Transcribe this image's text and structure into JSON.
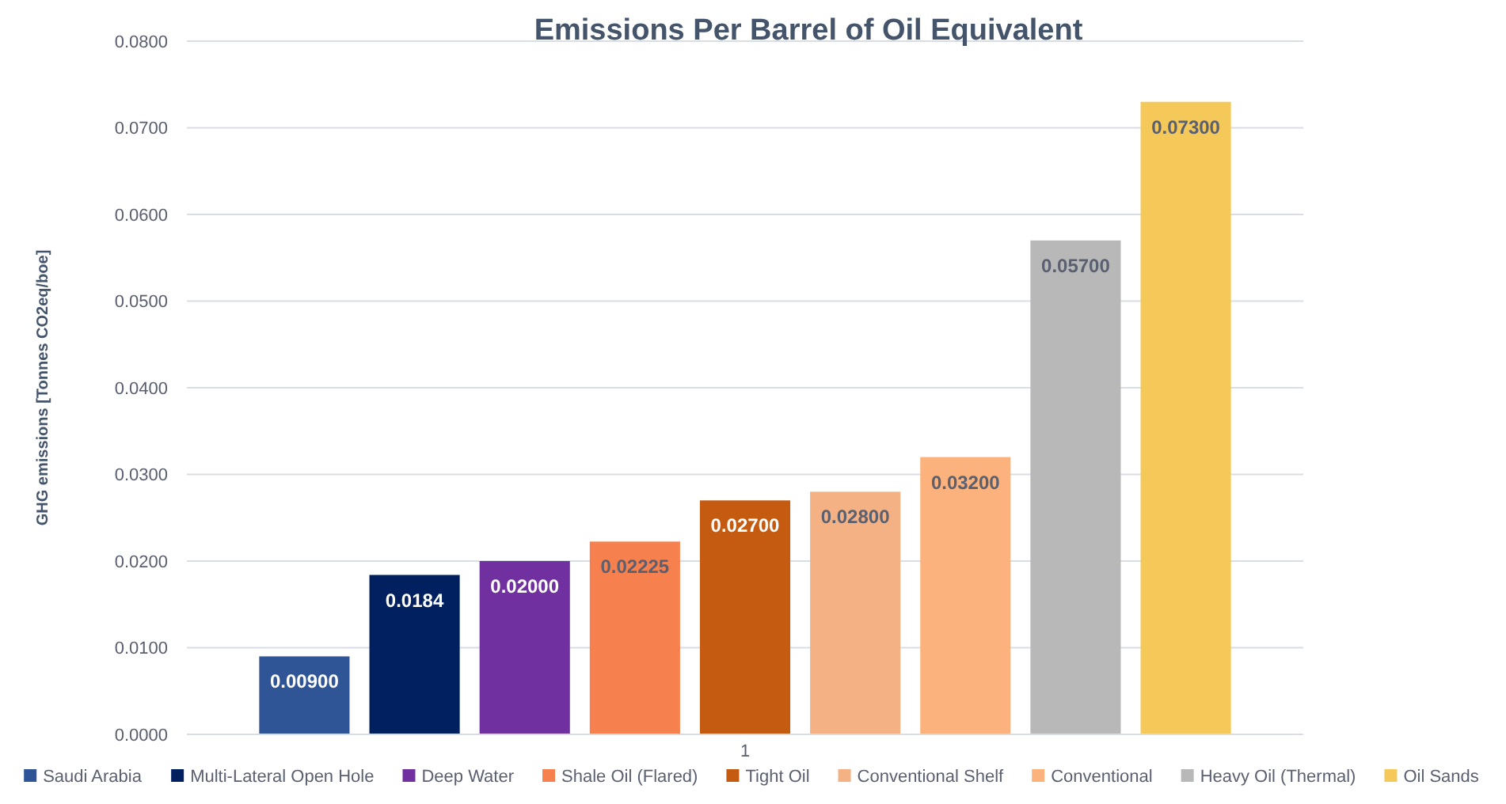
{
  "chart_data": {
    "type": "bar",
    "title": "Emissions Per Barrel of Oil Equivalent",
    "ylabel": "GHG emissions [Tonnes CO2eq/boe]",
    "categories": [
      "1"
    ],
    "series": [
      {
        "name": "Saudi Arabia",
        "color": "#2f5597",
        "values": [
          0.009
        ],
        "value_labels": [
          "0.00900"
        ]
      },
      {
        "name": "Multi-Lateral Open Hole",
        "color": "#002060",
        "values": [
          0.0184
        ],
        "value_labels": [
          "0.0184"
        ]
      },
      {
        "name": "Deep Water",
        "color": "#7030a0",
        "values": [
          0.02
        ],
        "value_labels": [
          "0.02000"
        ]
      },
      {
        "name": "Shale Oil (Flared)",
        "color": "#f6804e",
        "values": [
          0.02225
        ],
        "value_labels": [
          "0.02225"
        ]
      },
      {
        "name": "Tight Oil",
        "color": "#c55a11",
        "values": [
          0.027
        ],
        "value_labels": [
          "0.02700"
        ]
      },
      {
        "name": "Conventional Shelf",
        "color": "#f4b183",
        "values": [
          0.028
        ],
        "value_labels": [
          "0.02800"
        ]
      },
      {
        "name": "Conventional",
        "color": "#fbb27c",
        "values": [
          0.032
        ],
        "value_labels": [
          "0.03200"
        ]
      },
      {
        "name": "Heavy Oil (Thermal)",
        "color": "#b8b8b8",
        "values": [
          0.057
        ],
        "value_labels": [
          "0.05700"
        ]
      },
      {
        "name": "Oil Sands",
        "color": "#f5c85a",
        "values": [
          0.073
        ],
        "value_labels": [
          "0.07300"
        ]
      }
    ],
    "ylim": [
      0,
      0.08
    ],
    "yticks": [
      {
        "value": 0,
        "label": "0.0000"
      },
      {
        "value": 0.01,
        "label": "0.0100"
      },
      {
        "value": 0.02,
        "label": "0.0200"
      },
      {
        "value": 0.03,
        "label": "0.0300"
      },
      {
        "value": 0.04,
        "label": "0.0400"
      },
      {
        "value": 0.05,
        "label": "0.0500"
      },
      {
        "value": 0.06,
        "label": "0.0600"
      },
      {
        "value": 0.07,
        "label": "0.0700"
      },
      {
        "value": 0.08,
        "label": "0.0800"
      }
    ],
    "grid": "y",
    "legend": "bottom"
  }
}
